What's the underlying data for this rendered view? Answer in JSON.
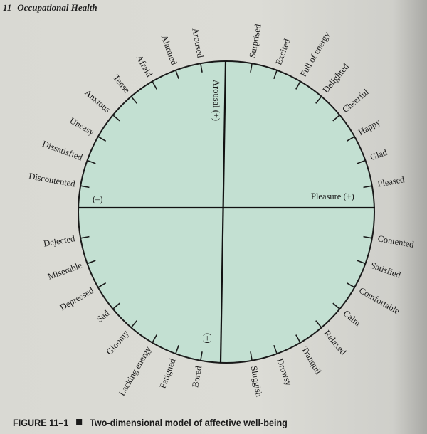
{
  "header": {
    "chapter": "11",
    "title": "Occupational Health"
  },
  "diagram": {
    "circle_fill": "#c3e0d2",
    "vertical_axis_label": "Arousal (+)",
    "vertical_axis_negative": "(–)",
    "horizontal_axis_label": "Pleasure (+)",
    "horizontal_axis_negative": "(–)",
    "quadrants": {
      "upper_right": [
        "Surprised",
        "Excited",
        "Full of energy",
        "Delighted",
        "Cheerful",
        "Happy",
        "Glad",
        "Pleased"
      ],
      "lower_right": [
        "Contented",
        "Satisfied",
        "Comfortable",
        "Calm",
        "Relaxed",
        "Tranquil",
        "Drowsy",
        "Sluggish"
      ],
      "lower_left": [
        "Bored",
        "Fatigued",
        "Lacking energy",
        "Gloomy",
        "Sad",
        "Depressed",
        "Miserable",
        "Dejected"
      ],
      "upper_left": [
        "Discontented",
        "Dissatisfied",
        "Uneasy",
        "Anxious",
        "Tense",
        "Afraid",
        "Alarmed",
        "Aroused"
      ]
    }
  },
  "caption": {
    "figure": "FIGURE 11–1",
    "text": "Two-dimensional model of affective well-being"
  }
}
